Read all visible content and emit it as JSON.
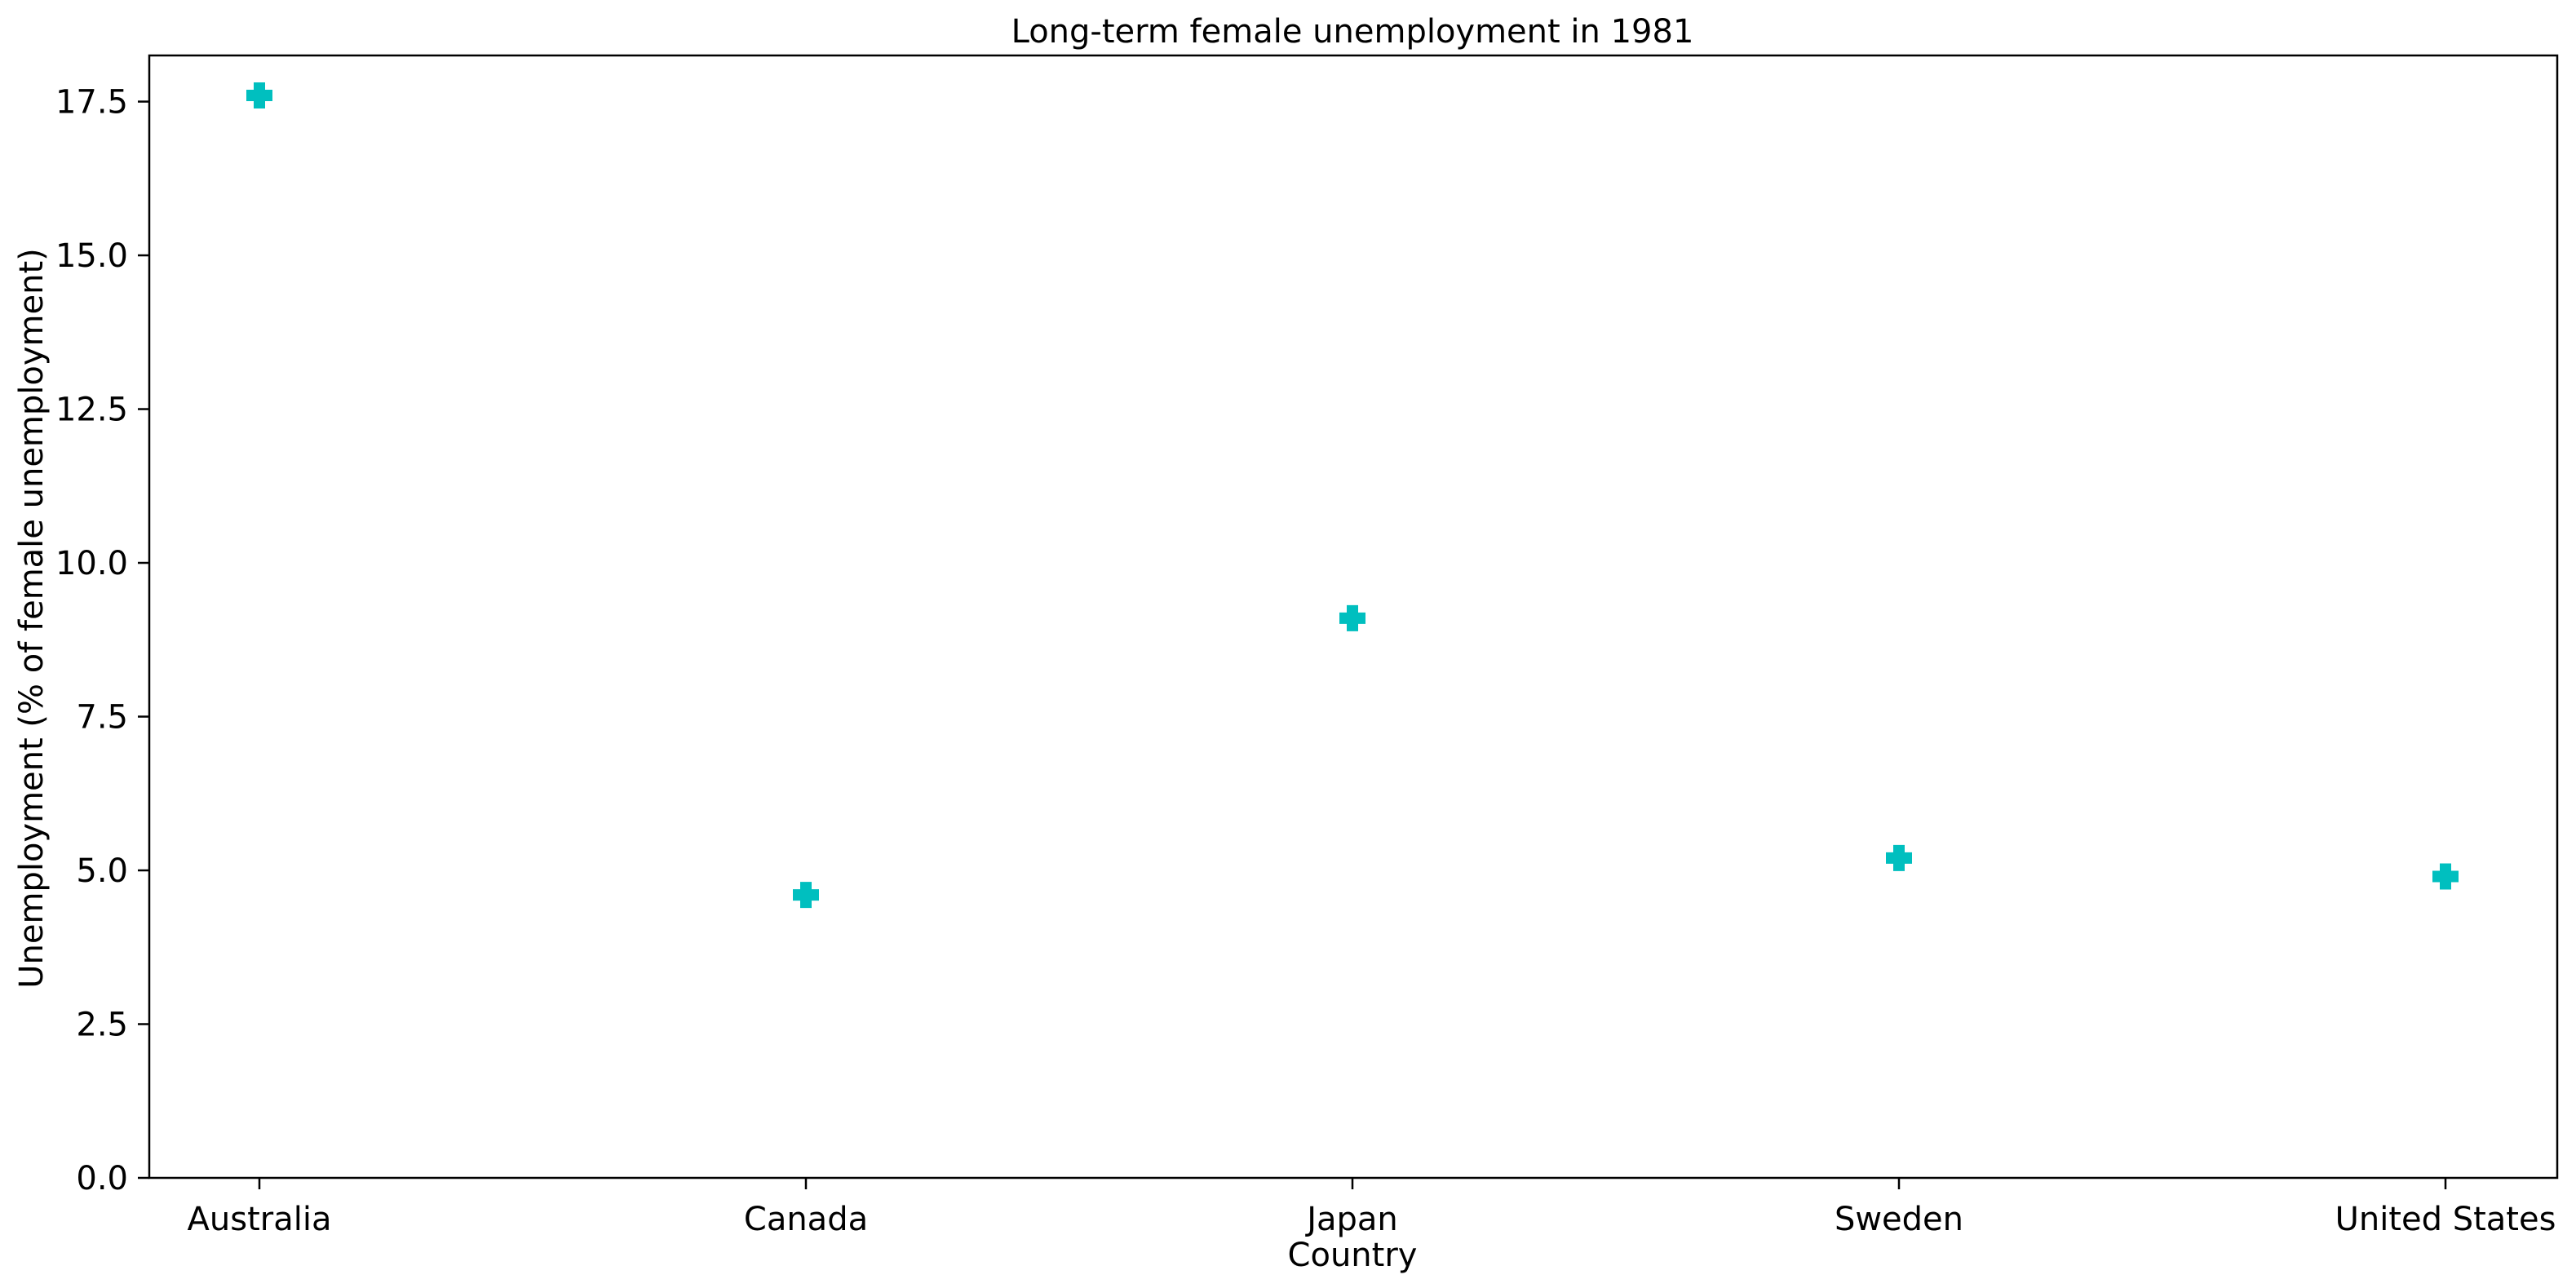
{
  "chart_data": {
    "type": "scatter",
    "title": "Long-term female unemployment in 1981",
    "xlabel": "Country",
    "ylabel": "Unemployment (% of female unemployment)",
    "categories": [
      "Australia",
      "Canada",
      "Japan",
      "Sweden",
      "United States"
    ],
    "series": [
      {
        "values": [
          17.6,
          4.6,
          9.1,
          5.2,
          4.9
        ],
        "color": "#00bfbf",
        "marker": "plus-filled"
      }
    ],
    "ylim": [
      0,
      18.25
    ],
    "yticks": [
      0.0,
      2.5,
      5.0,
      7.5,
      10.0,
      12.5,
      15.0,
      17.5
    ],
    "ytick_labels": [
      "0.0",
      "2.5",
      "5.0",
      "7.5",
      "10.0",
      "12.5",
      "15.0",
      "17.5"
    ],
    "grid": false,
    "legend": "none"
  }
}
